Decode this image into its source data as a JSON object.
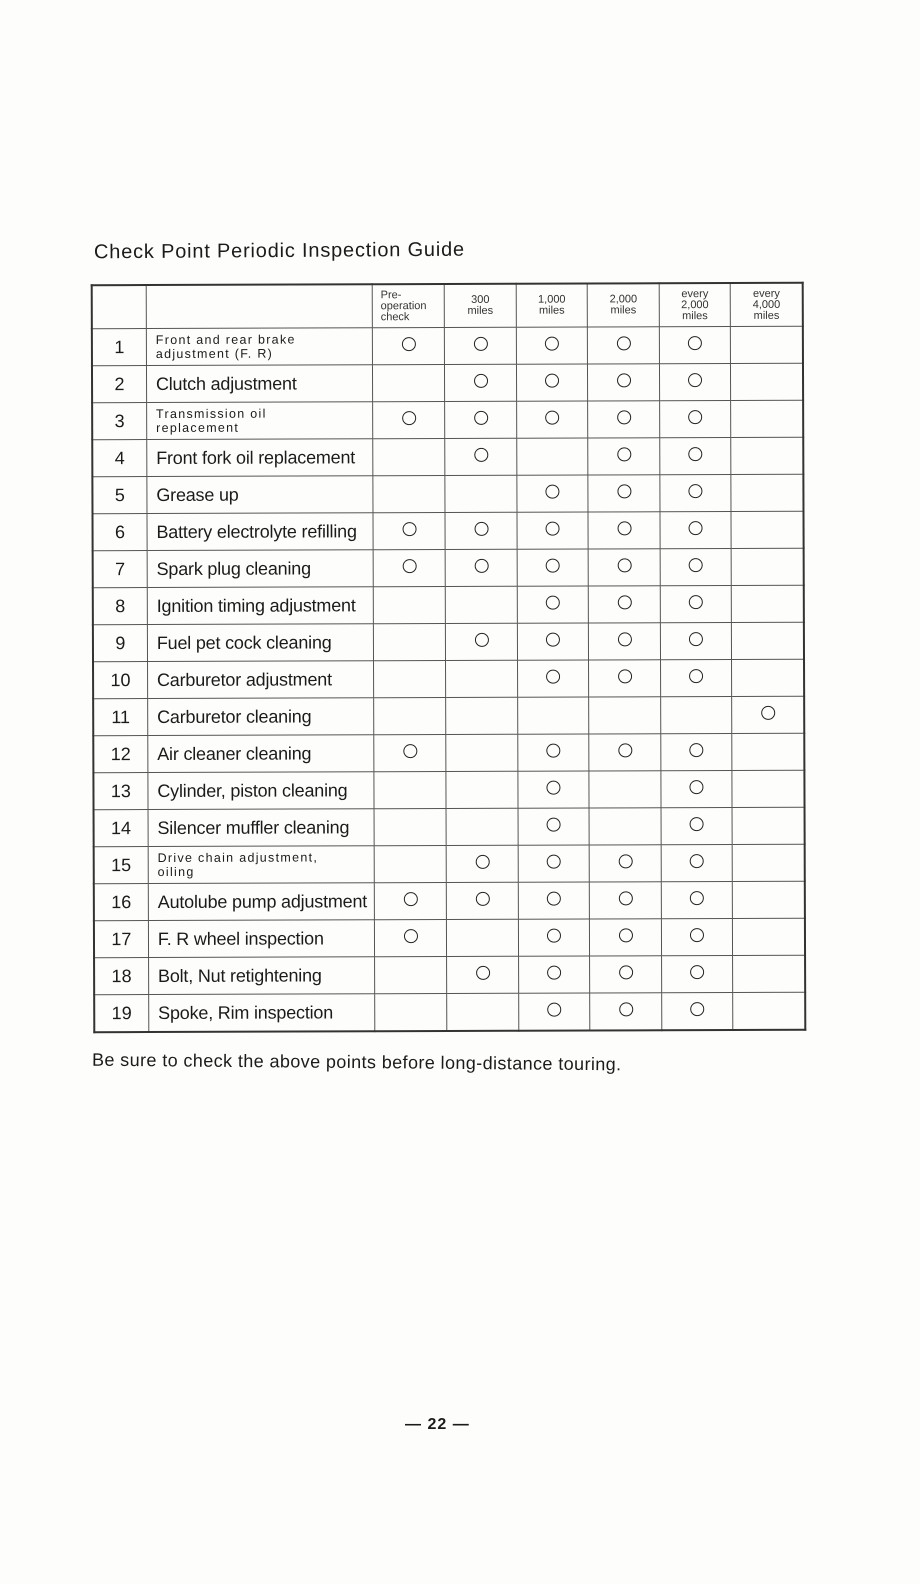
{
  "title": "Check Point Periodic Inspection Guide",
  "columns": [
    "Pre-\noperation\ncheck",
    "300\nmiles",
    "1,000\nmiles",
    "2,000\nmiles",
    "every\n2,000\nmiles",
    "every\n4,000\nmiles"
  ],
  "rows": [
    {
      "num": "1",
      "item": "Front and rear brake\nadjustment (F. R)",
      "small": true,
      "marks": [
        1,
        1,
        1,
        1,
        1,
        0
      ]
    },
    {
      "num": "2",
      "item": "Clutch adjustment",
      "marks": [
        0,
        1,
        1,
        1,
        1,
        0
      ]
    },
    {
      "num": "3",
      "item": "Transmission oil\nreplacement",
      "small": true,
      "marks": [
        1,
        1,
        1,
        1,
        1,
        0
      ]
    },
    {
      "num": "4",
      "item": "Front fork oil replacement",
      "marks": [
        0,
        1,
        0,
        1,
        1,
        0
      ]
    },
    {
      "num": "5",
      "item": "Grease up",
      "marks": [
        0,
        0,
        1,
        1,
        1,
        0
      ]
    },
    {
      "num": "6",
      "item": "Battery electrolyte refilling",
      "marks": [
        1,
        1,
        1,
        1,
        1,
        0
      ]
    },
    {
      "num": "7",
      "item": "Spark plug cleaning",
      "marks": [
        1,
        1,
        1,
        1,
        1,
        0
      ]
    },
    {
      "num": "8",
      "item": "Ignition timing adjustment",
      "marks": [
        0,
        0,
        1,
        1,
        1,
        0
      ]
    },
    {
      "num": "9",
      "item": "Fuel pet cock cleaning",
      "marks": [
        0,
        1,
        1,
        1,
        1,
        0
      ]
    },
    {
      "num": "10",
      "item": "Carburetor adjustment",
      "marks": [
        0,
        0,
        1,
        1,
        1,
        0
      ]
    },
    {
      "num": "11",
      "item": "Carburetor cleaning",
      "marks": [
        0,
        0,
        0,
        0,
        0,
        1
      ]
    },
    {
      "num": "12",
      "item": "Air cleaner cleaning",
      "marks": [
        1,
        0,
        1,
        1,
        1,
        0
      ]
    },
    {
      "num": "13",
      "item": "Cylinder, piston cleaning",
      "marks": [
        0,
        0,
        1,
        0,
        1,
        0
      ]
    },
    {
      "num": "14",
      "item": "Silencer muffler cleaning",
      "marks": [
        0,
        0,
        1,
        0,
        1,
        0
      ]
    },
    {
      "num": "15",
      "item": "Drive chain adjustment,\noiling",
      "small": true,
      "marks": [
        0,
        1,
        1,
        1,
        1,
        0
      ]
    },
    {
      "num": "16",
      "item": "Autolube pump adjustment",
      "marks": [
        1,
        1,
        1,
        1,
        1,
        0
      ]
    },
    {
      "num": "17",
      "item": "F. R wheel inspection",
      "marks": [
        1,
        0,
        1,
        1,
        1,
        0
      ]
    },
    {
      "num": "18",
      "item": "Bolt, Nut retightening",
      "marks": [
        0,
        1,
        1,
        1,
        1,
        0
      ]
    },
    {
      "num": "19",
      "item": "Spoke, Rim inspection",
      "marks": [
        0,
        0,
        1,
        1,
        1,
        0
      ]
    }
  ],
  "mark_symbol": "circle",
  "note": "Be sure to check the above points before long-distance touring.",
  "page_number": "— 22 —"
}
